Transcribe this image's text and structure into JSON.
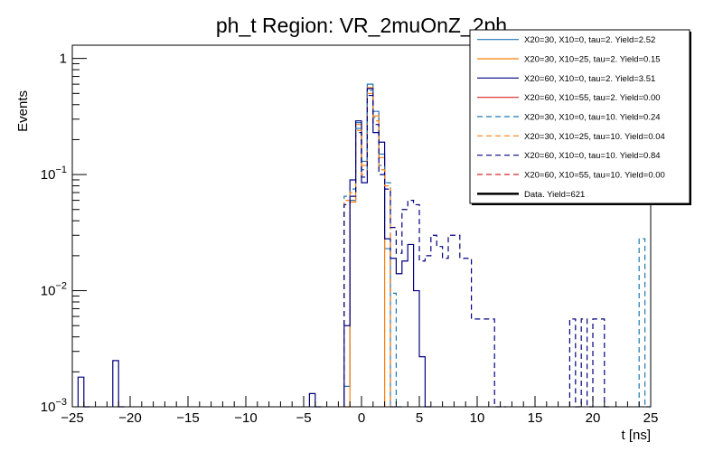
{
  "chart_data": {
    "type": "line",
    "title": "ph_t Region: VR_2muOnZ_2ph",
    "xlabel": "t [ns]",
    "ylabel": "Events",
    "xlim": [
      -25,
      25
    ],
    "ylim": [
      0.001,
      1.3
    ],
    "yscale": "log",
    "x_ticks": [
      -25,
      -20,
      -15,
      -10,
      -5,
      0,
      5,
      10,
      15,
      20,
      25
    ],
    "x_tick_labels": [
      "−25",
      "−20",
      "−15",
      "−10",
      "−5",
      "0",
      "5",
      "10",
      "15",
      "20",
      "25"
    ],
    "y_ticks": [
      {
        "value": 1,
        "base": "1",
        "exp": ""
      },
      {
        "value": 0.1,
        "base": "10",
        "exp": "−1"
      },
      {
        "value": 0.01,
        "base": "10",
        "exp": "−2"
      },
      {
        "value": 0.001,
        "base": "10",
        "exp": "−3"
      }
    ],
    "bin_width": 0.5,
    "legend_position": "top-right",
    "series": [
      {
        "name": "X20=30, X10=0, tau=2. Yield=2.52",
        "color": "#1f77b4",
        "style": "solid",
        "x": [
          -1.5,
          -1.0,
          -0.5,
          0.0,
          0.5,
          1.0,
          1.5,
          2.0,
          2.5
        ],
        "y": [
          0.0015,
          0.06,
          0.28,
          0.13,
          0.6,
          0.35,
          0.15,
          0.023,
          0.001
        ]
      },
      {
        "name": "X20=30, X10=25, tau=2. Yield=0.15",
        "color": "#ff7f0e",
        "style": "solid",
        "x": [
          -1.5,
          -1.0,
          -0.5,
          0.0,
          0.5,
          1.0,
          1.5
        ],
        "y": [
          0.001,
          0.058,
          0.27,
          0.12,
          0.56,
          0.32,
          0.14
        ]
      },
      {
        "name": "X20=60, X10=0, tau=2. Yield=3.51",
        "color": "#000080",
        "style": "solid",
        "x": [
          -24.5,
          -24.0,
          -21.5,
          -21.0,
          -4.5,
          -4.0,
          -1.5,
          -1.0,
          -0.5,
          0.0,
          0.5,
          1.0,
          1.5,
          2.0,
          2.5,
          3.0,
          3.5,
          4.0,
          4.5,
          5.0,
          5.5
        ],
        "y": [
          0.0018,
          0.001,
          0.0025,
          0.001,
          0.0013,
          0.001,
          0.005,
          0.09,
          0.29,
          0.085,
          0.55,
          0.23,
          0.19,
          0.028,
          0.019,
          0.014,
          0.018,
          0.025,
          0.01,
          0.0027,
          0.001
        ]
      },
      {
        "name": "X20=60, X10=55, tau=2. Yield=0.00",
        "color": "#d62728",
        "style": "solid",
        "x": [],
        "y": []
      },
      {
        "name": "X20=30, X10=0, tau=10. Yield=0.24",
        "color": "#1f77b4",
        "style": "dashed",
        "x": [
          -1.5,
          -1.0,
          -0.5,
          0.0,
          0.5,
          1.0,
          1.5,
          2.0,
          2.5,
          3.0,
          24.0,
          24.5
        ],
        "y": [
          0.065,
          0.075,
          0.25,
          0.11,
          0.53,
          0.31,
          0.12,
          0.085,
          0.0095,
          0.001,
          0.028,
          0.001
        ]
      },
      {
        "name": "X20=30, X10=25, tau=10. Yield=0.04",
        "color": "#ff7f0e",
        "style": "dashed",
        "x": [
          -1.5,
          -1.0,
          -0.5,
          0.0,
          0.5,
          1.0,
          1.5,
          2.0
        ],
        "y": [
          0.06,
          0.07,
          0.24,
          0.1,
          0.5,
          0.29,
          0.11,
          0.08
        ]
      },
      {
        "name": "X20=60, X10=0, tau=10. Yield=0.84",
        "color": "#000080",
        "style": "dashed",
        "x": [
          -1.5,
          -1.0,
          -0.5,
          0.0,
          0.5,
          1.0,
          1.5,
          2.0,
          2.5,
          3.0,
          3.5,
          4.0,
          4.5,
          5.0,
          5.5,
          6.0,
          6.5,
          7.0,
          7.5,
          8.0,
          8.5,
          9.0,
          9.5,
          10.0,
          10.5,
          11.0,
          11.5,
          12.0,
          18.0,
          18.5,
          19.0,
          19.5,
          20.0,
          20.5,
          21.0
        ],
        "y": [
          0.055,
          0.065,
          0.23,
          0.095,
          0.48,
          0.27,
          0.1,
          0.075,
          0.035,
          0.021,
          0.05,
          0.06,
          0.055,
          0.018,
          0.02,
          0.03,
          0.024,
          0.019,
          0.03,
          0.03,
          0.019,
          0.019,
          0.0057,
          0.0057,
          0.0057,
          0.0057,
          0.001,
          0.001,
          0.0057,
          0.001,
          0.0057,
          0.001,
          0.0057,
          0.0057,
          0.001
        ]
      },
      {
        "name": "X20=60, X10=55, tau=10. Yield=0.00",
        "color": "#d62728",
        "style": "dashed",
        "x": [],
        "y": []
      },
      {
        "name": "Data. Yield=621",
        "color": "#000000",
        "style": "thick",
        "x": [],
        "y": []
      }
    ]
  }
}
